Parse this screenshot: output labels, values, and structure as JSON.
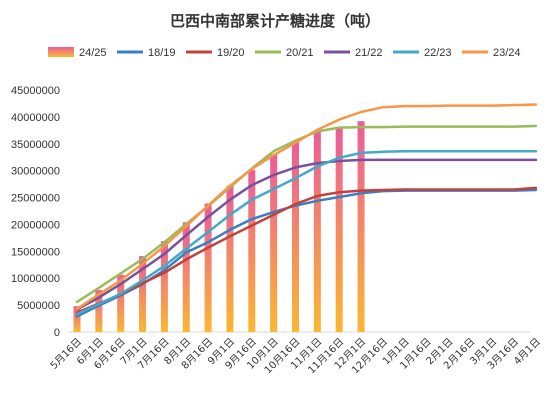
{
  "chart_data": {
    "type": "bar+line",
    "title": "巴西中南部累计产糖进度（吨）",
    "categories": [
      "5月16日",
      "6月1日",
      "6月16日",
      "7月1日",
      "7月16日",
      "8月1日",
      "8月16日",
      "9月1日",
      "9月16日",
      "10月1日",
      "10月16日",
      "11月1日",
      "11月16日",
      "12月1日",
      "12月16日",
      "1月1日",
      "1月16日",
      "2月1日",
      "2月16日",
      "3月1日",
      "3月16日",
      "4月1日"
    ],
    "ylim": [
      0,
      45000000
    ],
    "yticks": [
      "0",
      "5000000",
      "10000000",
      "15000000",
      "20000000",
      "25000000",
      "30000000",
      "35000000",
      "40000000",
      "45000000"
    ],
    "bar_series": {
      "name": "24/25",
      "color_top": "#ea5c9a",
      "color_bottom": "#fbb731",
      "values": [
        4800000,
        7800000,
        10600000,
        14100000,
        16900000,
        20400000,
        23900000,
        27200000,
        30100000,
        33000000,
        35500000,
        37400000,
        38100000,
        39200000
      ]
    },
    "series": [
      {
        "name": "18/19",
        "color": "#3a7fc4",
        "values": [
          2900000,
          4900000,
          6800000,
          8900000,
          11500000,
          14800000,
          16700000,
          19000000,
          21000000,
          22300000,
          23500000,
          24400000,
          25100000,
          25800000,
          26200000,
          26300000,
          26300000,
          26300000,
          26300000,
          26300000,
          26300000,
          26400000
        ]
      },
      {
        "name": "19/20",
        "color": "#c4403d",
        "values": [
          3600000,
          5300000,
          7000000,
          9100000,
          11000000,
          13500000,
          15700000,
          17800000,
          19800000,
          21800000,
          23800000,
          25300000,
          26000000,
          26300000,
          26400000,
          26500000,
          26500000,
          26500000,
          26500000,
          26500000,
          26500000,
          26800000
        ]
      },
      {
        "name": "20/21",
        "color": "#9bbb59",
        "values": [
          5600000,
          8200000,
          10900000,
          13600000,
          16700000,
          20100000,
          23400000,
          26900000,
          30400000,
          33600000,
          35600000,
          37300000,
          38000000,
          38100000,
          38100000,
          38200000,
          38200000,
          38200000,
          38200000,
          38200000,
          38200000,
          38300000
        ]
      },
      {
        "name": "21/22",
        "color": "#7a4f9b",
        "values": [
          4200000,
          6400000,
          8900000,
          11700000,
          14500000,
          18000000,
          21400000,
          24600000,
          27300000,
          29200000,
          30600000,
          31400000,
          31800000,
          32000000,
          32000000,
          32000000,
          32000000,
          32000000,
          32000000,
          32000000,
          32000000,
          32000000
        ]
      },
      {
        "name": "22/23",
        "color": "#43a9c9",
        "values": [
          3300000,
          5200000,
          7100000,
          9600000,
          12300000,
          15500000,
          18600000,
          21800000,
          24600000,
          26600000,
          28600000,
          30800000,
          32400000,
          33300000,
          33500000,
          33600000,
          33600000,
          33600000,
          33600000,
          33600000,
          33600000,
          33600000
        ]
      },
      {
        "name": "23/24",
        "color": "#f79646",
        "values": [
          4300000,
          7000000,
          9600000,
          12700000,
          16000000,
          19700000,
          23500000,
          27200000,
          30300000,
          32900000,
          35200000,
          37600000,
          39500000,
          40900000,
          41800000,
          42000000,
          42000000,
          42100000,
          42100000,
          42100000,
          42200000,
          42300000
        ]
      }
    ],
    "legend_position": "top",
    "grid": false
  }
}
